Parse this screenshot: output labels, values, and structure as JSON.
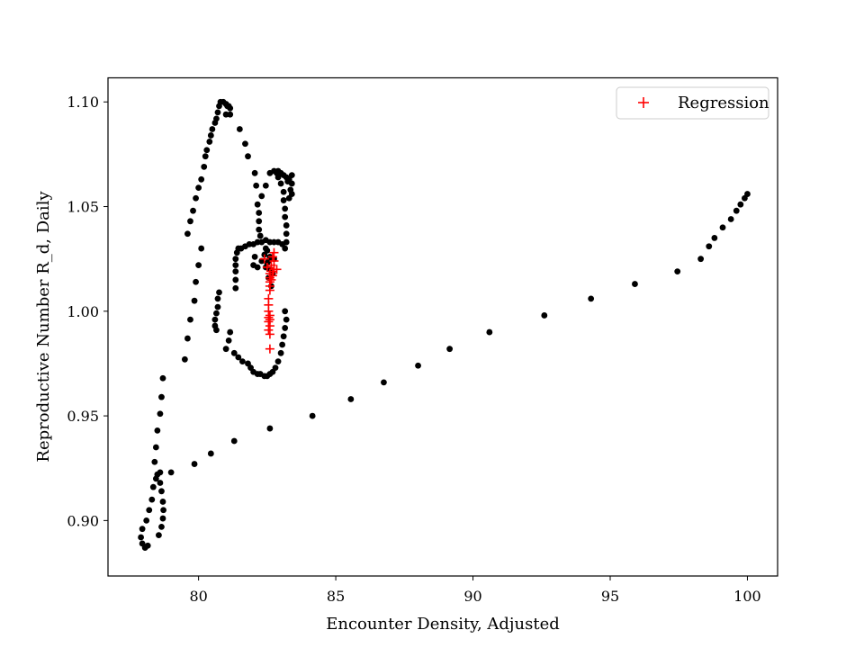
{
  "chart_data": {
    "type": "scatter",
    "title": "",
    "xlabel": "Encounter Density, Adjusted",
    "ylabel": "Reproductive Number R_d, Daily",
    "xlim": [
      76.7,
      101.1
    ],
    "ylim": [
      0.8735,
      1.1115
    ],
    "xticks": [
      80,
      85,
      90,
      95,
      100
    ],
    "yticks": [
      0.9,
      0.95,
      1.0,
      1.05,
      1.1
    ],
    "xtick_labels": [
      "80",
      "85",
      "90",
      "95",
      "100"
    ],
    "ytick_labels": [
      "0.90",
      "0.95",
      "1.00",
      "1.05",
      "1.10"
    ],
    "grid": false,
    "legend": {
      "position": "top-right",
      "entries": [
        "Regression"
      ]
    },
    "series": [
      {
        "color": "#000000",
        "marker": "circle",
        "points": [
          [
            77.9,
            0.892
          ],
          [
            77.95,
            0.889
          ],
          [
            78.05,
            0.887
          ],
          [
            78.15,
            0.888
          ],
          [
            77.95,
            0.896
          ],
          [
            78.1,
            0.9
          ],
          [
            78.2,
            0.905
          ],
          [
            78.3,
            0.91
          ],
          [
            78.35,
            0.916
          ],
          [
            78.45,
            0.92
          ],
          [
            78.4,
            0.928
          ],
          [
            78.45,
            0.935
          ],
          [
            78.5,
            0.943
          ],
          [
            78.6,
            0.951
          ],
          [
            78.65,
            0.959
          ],
          [
            78.7,
            0.968
          ],
          [
            78.5,
            0.922
          ],
          [
            78.6,
            0.918
          ],
          [
            78.65,
            0.914
          ],
          [
            78.7,
            0.909
          ],
          [
            78.72,
            0.905
          ],
          [
            78.7,
            0.901
          ],
          [
            78.65,
            0.897
          ],
          [
            78.55,
            0.893
          ],
          [
            78.6,
            0.923
          ],
          [
            79.0,
            0.923
          ],
          [
            79.85,
            0.927
          ],
          [
            80.45,
            0.932
          ],
          [
            81.3,
            0.938
          ],
          [
            82.6,
            0.944
          ],
          [
            84.15,
            0.95
          ],
          [
            85.55,
            0.958
          ],
          [
            86.75,
            0.966
          ],
          [
            88.0,
            0.974
          ],
          [
            89.15,
            0.982
          ],
          [
            90.6,
            0.99
          ],
          [
            92.6,
            0.998
          ],
          [
            94.3,
            1.006
          ],
          [
            95.9,
            1.013
          ],
          [
            97.45,
            1.019
          ],
          [
            98.3,
            1.025
          ],
          [
            98.6,
            1.031
          ],
          [
            98.8,
            1.035
          ],
          [
            99.1,
            1.04
          ],
          [
            99.4,
            1.044
          ],
          [
            99.6,
            1.048
          ],
          [
            99.75,
            1.051
          ],
          [
            99.9,
            1.054
          ],
          [
            100.0,
            1.056
          ],
          [
            79.5,
            0.977
          ],
          [
            79.6,
            0.987
          ],
          [
            79.7,
            0.996
          ],
          [
            79.85,
            1.005
          ],
          [
            79.9,
            1.014
          ],
          [
            80.0,
            1.022
          ],
          [
            80.1,
            1.03
          ],
          [
            79.6,
            1.037
          ],
          [
            79.7,
            1.043
          ],
          [
            79.8,
            1.048
          ],
          [
            79.9,
            1.054
          ],
          [
            80.0,
            1.059
          ],
          [
            80.1,
            1.063
          ],
          [
            80.2,
            1.069
          ],
          [
            80.25,
            1.074
          ],
          [
            80.3,
            1.077
          ],
          [
            80.4,
            1.081
          ],
          [
            80.45,
            1.084
          ],
          [
            80.5,
            1.087
          ],
          [
            80.6,
            1.09
          ],
          [
            80.65,
            1.092
          ],
          [
            80.7,
            1.095
          ],
          [
            80.75,
            1.098
          ],
          [
            80.8,
            1.1
          ],
          [
            80.9,
            1.1
          ],
          [
            81.0,
            1.099
          ],
          [
            81.05,
            1.098
          ],
          [
            81.1,
            1.098
          ],
          [
            81.15,
            1.097
          ],
          [
            81.0,
            1.094
          ],
          [
            81.15,
            1.094
          ],
          [
            81.5,
            1.087
          ],
          [
            81.7,
            1.08
          ],
          [
            81.8,
            1.074
          ],
          [
            82.05,
            1.066
          ],
          [
            80.75,
            1.009
          ],
          [
            80.7,
            1.006
          ],
          [
            80.7,
            1.002
          ],
          [
            80.65,
            0.999
          ],
          [
            80.6,
            0.996
          ],
          [
            80.6,
            0.993
          ],
          [
            80.65,
            0.991
          ],
          [
            81.0,
            0.982
          ],
          [
            81.1,
            0.986
          ],
          [
            81.15,
            0.99
          ],
          [
            81.3,
            0.98
          ],
          [
            81.45,
            0.978
          ],
          [
            81.6,
            0.976
          ],
          [
            81.8,
            0.975
          ],
          [
            81.9,
            0.973
          ],
          [
            82.0,
            0.971
          ],
          [
            82.15,
            0.97
          ],
          [
            82.25,
            0.97
          ],
          [
            82.4,
            0.969
          ],
          [
            82.5,
            0.969
          ],
          [
            82.6,
            0.97
          ],
          [
            82.7,
            0.971
          ],
          [
            82.8,
            0.973
          ],
          [
            82.9,
            0.976
          ],
          [
            83.0,
            0.98
          ],
          [
            83.05,
            0.984
          ],
          [
            83.1,
            0.988
          ],
          [
            83.15,
            0.992
          ],
          [
            83.2,
            0.996
          ],
          [
            83.15,
            1.0
          ],
          [
            81.35,
            1.011
          ],
          [
            81.35,
            1.015
          ],
          [
            81.35,
            1.019
          ],
          [
            81.35,
            1.022
          ],
          [
            81.35,
            1.025
          ],
          [
            81.4,
            1.028
          ],
          [
            81.45,
            1.03
          ],
          [
            81.55,
            1.03
          ],
          [
            81.7,
            1.031
          ],
          [
            81.85,
            1.032
          ],
          [
            82.0,
            1.032
          ],
          [
            82.15,
            1.033
          ],
          [
            82.3,
            1.033
          ],
          [
            82.45,
            1.034
          ],
          [
            82.6,
            1.033
          ],
          [
            82.75,
            1.033
          ],
          [
            82.9,
            1.033
          ],
          [
            83.05,
            1.032
          ],
          [
            83.15,
            1.03
          ],
          [
            83.2,
            1.033
          ],
          [
            83.2,
            1.037
          ],
          [
            83.2,
            1.041
          ],
          [
            83.15,
            1.045
          ],
          [
            83.15,
            1.049
          ],
          [
            83.1,
            1.053
          ],
          [
            83.1,
            1.057
          ],
          [
            83.0,
            1.061
          ],
          [
            82.9,
            1.064
          ],
          [
            82.85,
            1.066
          ],
          [
            82.75,
            1.067
          ],
          [
            82.6,
            1.066
          ],
          [
            82.45,
            1.06
          ],
          [
            82.3,
            1.055
          ],
          [
            82.1,
            1.06
          ],
          [
            82.15,
            1.051
          ],
          [
            82.2,
            1.047
          ],
          [
            82.2,
            1.043
          ],
          [
            82.2,
            1.039
          ],
          [
            82.25,
            1.036
          ],
          [
            82.9,
            1.067
          ],
          [
            83.0,
            1.066
          ],
          [
            83.1,
            1.065
          ],
          [
            83.2,
            1.064
          ],
          [
            83.3,
            1.063
          ],
          [
            83.4,
            1.065
          ],
          [
            83.4,
            1.061
          ],
          [
            83.35,
            1.058
          ],
          [
            83.4,
            1.056
          ],
          [
            83.3,
            1.054
          ],
          [
            83.25,
            1.062
          ],
          [
            82.5,
            1.029
          ],
          [
            82.55,
            1.024
          ],
          [
            82.45,
            1.021
          ],
          [
            82.6,
            1.02
          ],
          [
            82.7,
            1.018
          ],
          [
            82.55,
            1.016
          ],
          [
            82.65,
            1.012
          ],
          [
            82.45,
            1.03
          ],
          [
            82.0,
            1.022
          ],
          [
            82.05,
            1.026
          ],
          [
            82.15,
            1.021
          ],
          [
            82.3,
            1.024
          ],
          [
            82.4,
            1.027
          ],
          [
            82.5,
            1.023
          ],
          [
            82.6,
            1.026
          ],
          [
            82.75,
            1.025
          ]
        ]
      },
      {
        "name": "Regression",
        "color": "#ff0000",
        "marker": "plus",
        "points": [
          [
            82.75,
            1.028
          ],
          [
            82.7,
            1.026
          ],
          [
            82.75,
            1.024
          ],
          [
            82.65,
            1.022
          ],
          [
            82.75,
            1.02
          ],
          [
            82.85,
            1.02
          ],
          [
            82.7,
            1.019
          ],
          [
            82.6,
            1.018
          ],
          [
            82.7,
            1.017
          ],
          [
            82.6,
            1.016
          ],
          [
            82.65,
            1.015
          ],
          [
            82.6,
            1.014
          ],
          [
            82.6,
            1.012
          ],
          [
            82.6,
            1.01
          ],
          [
            82.55,
            1.006
          ],
          [
            82.55,
            1.003
          ],
          [
            82.55,
            1.0
          ],
          [
            82.6,
            0.998
          ],
          [
            82.55,
            0.997
          ],
          [
            82.6,
            0.996
          ],
          [
            82.55,
            0.995
          ],
          [
            82.6,
            0.993
          ],
          [
            82.55,
            0.991
          ],
          [
            82.6,
            0.989
          ],
          [
            82.6,
            0.982
          ],
          [
            82.4,
            1.025
          ],
          [
            82.5,
            1.021
          ]
        ]
      }
    ]
  }
}
